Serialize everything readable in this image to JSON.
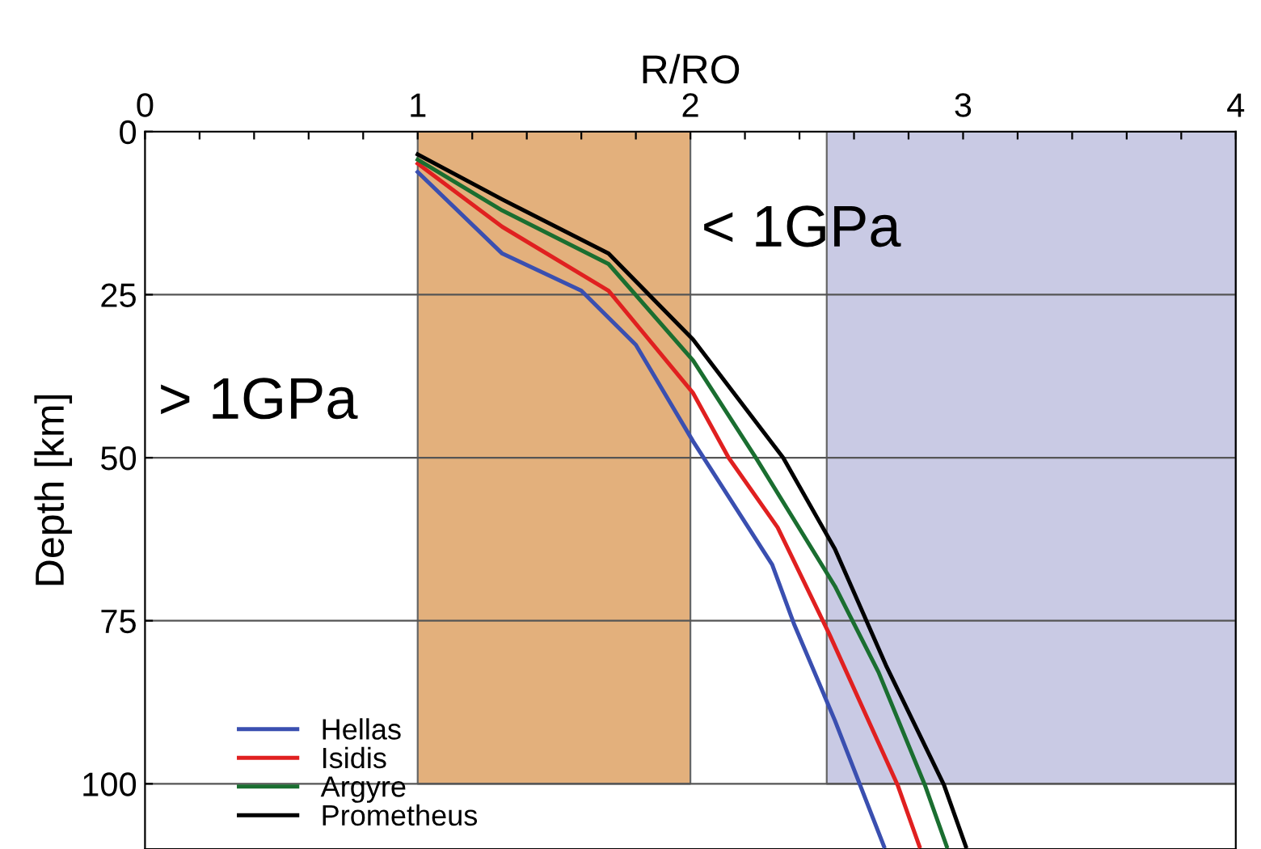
{
  "chart_data": {
    "type": "line",
    "xlabel": "R/RO",
    "ylabel": "Depth [km]",
    "xlim": [
      0,
      4
    ],
    "ylim": [
      110,
      0
    ],
    "xticks": [
      0,
      {
        "value": 0.2,
        "label": null
      },
      {
        "value": 0.4,
        "label": null
      },
      {
        "value": 0.6,
        "label": null
      },
      {
        "value": 0.8,
        "label": null
      },
      1,
      {
        "value": 1.2,
        "label": null
      },
      {
        "value": 1.4,
        "label": null
      },
      {
        "value": 1.6,
        "label": null
      },
      {
        "value": 1.8,
        "label": null
      },
      2,
      {
        "value": 2.2,
        "label": null
      },
      {
        "value": 2.4,
        "label": null
      },
      {
        "value": 2.6,
        "label": null
      },
      {
        "value": 2.8,
        "label": null
      },
      3,
      {
        "value": 3.2,
        "label": null
      },
      {
        "value": 3.4,
        "label": null
      },
      {
        "value": 3.6,
        "label": null
      },
      {
        "value": 3.8,
        "label": null
      },
      4
    ],
    "yticks": [
      0,
      25,
      50,
      75,
      100
    ],
    "grid": "y",
    "legend": "bottom left",
    "bands": [
      {
        "axis": "x",
        "from": 1,
        "to": 2,
        "color": "#e3b07c"
      },
      {
        "axis": "x",
        "from": 2.5,
        "to": 4,
        "color": "#c9cae4"
      }
    ],
    "annotations": [
      "> 1GPa",
      "< 1GPa"
    ],
    "series": [
      {
        "name": "Hellas",
        "color": "#3a4fb0",
        "x": [
          1.0,
          1.31,
          1.6,
          1.8,
          2.01,
          2.3,
          2.38,
          2.53,
          2.71
        ],
        "values": [
          6.2,
          18.7,
          24.4,
          32.7,
          47.5,
          66.4,
          75.5,
          90.3,
          109.6
        ]
      },
      {
        "name": "Isidis",
        "color": "#e02020",
        "x": [
          1.0,
          1.31,
          1.7,
          2.01,
          2.14,
          2.32,
          2.51,
          2.76,
          2.84
        ],
        "values": [
          4.9,
          14.6,
          24.4,
          40.1,
          50,
          60.7,
          77.1,
          100.2,
          109.6
        ]
      },
      {
        "name": "Argyre",
        "color": "#1a6e30",
        "x": [
          1.0,
          1.31,
          1.7,
          2.01,
          2.24,
          2.53,
          2.69,
          2.86,
          2.94
        ],
        "values": [
          4.3,
          12.1,
          20.3,
          35.1,
          50,
          69.7,
          82.9,
          100.2,
          109.6
        ]
      },
      {
        "name": "Prometheus",
        "color": "#000000",
        "x": [
          1.0,
          1.31,
          1.7,
          2.01,
          2.34,
          2.53,
          2.72,
          2.93,
          3.01
        ],
        "values": [
          3.5,
          10.4,
          18.7,
          31.9,
          50,
          64.0,
          82.1,
          100.2,
          109.6
        ]
      }
    ]
  }
}
